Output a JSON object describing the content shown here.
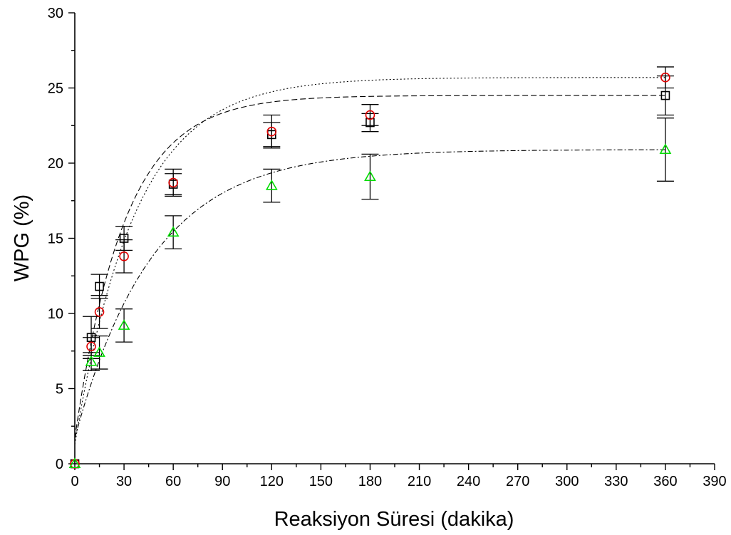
{
  "chart_data": {
    "type": "scatter",
    "xlabel": "Reaksiyon Süresi (dakika)",
    "ylabel": "WPG (%)",
    "xlim": [
      0,
      390
    ],
    "ylim": [
      0,
      30
    ],
    "xticks": [
      0,
      30,
      60,
      90,
      120,
      150,
      180,
      210,
      240,
      270,
      300,
      330,
      360,
      390
    ],
    "yticks": [
      0,
      5,
      10,
      15,
      20,
      25,
      30
    ],
    "grid": false,
    "legend": "none",
    "series": [
      {
        "marker": "square",
        "color": "#000000",
        "x": [
          0,
          10,
          15,
          30,
          60,
          120,
          180,
          360
        ],
        "y": [
          0,
          8.4,
          11.8,
          15.0,
          18.6,
          21.9,
          22.7,
          24.5
        ],
        "error": [
          0,
          1.4,
          0.8,
          0.8,
          0.7,
          0.8,
          0.6,
          1.3
        ],
        "fit": {
          "style": "dashed",
          "y0": 1.7,
          "plateau": 24.5,
          "rate": 0.033
        }
      },
      {
        "marker": "circle",
        "color": "#e00000",
        "x": [
          0,
          10,
          15,
          30,
          60,
          120,
          180,
          360
        ],
        "y": [
          0,
          7.8,
          10.1,
          13.8,
          18.7,
          22.1,
          23.2,
          25.7
        ],
        "error": [
          0,
          0.6,
          1.1,
          1.1,
          0.9,
          1.1,
          0.7,
          0.7
        ],
        "fit": {
          "style": "dotted",
          "y0": 1.3,
          "plateau": 25.7,
          "rate": 0.027
        }
      },
      {
        "marker": "triangle",
        "color": "#00dd00",
        "x": [
          0,
          10,
          15,
          30,
          60,
          120,
          180,
          360
        ],
        "y": [
          0,
          6.8,
          7.4,
          9.2,
          15.4,
          18.5,
          19.1,
          20.9
        ],
        "error": [
          0,
          0.6,
          1.1,
          1.1,
          1.1,
          1.1,
          1.5,
          2.1
        ],
        "fit": {
          "style": "dashdot",
          "y0": 1.7,
          "plateau": 20.9,
          "rate": 0.021
        }
      }
    ]
  }
}
